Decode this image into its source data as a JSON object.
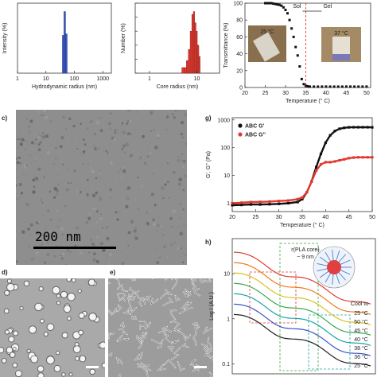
{
  "panel_labels": {
    "c": "c)",
    "d": "d)",
    "e": "e)",
    "g": "g)",
    "h": "h)"
  },
  "tem_c": {
    "scalebar": "200 nm"
  },
  "chart_data": [
    {
      "id": "dls-hydrodynamic",
      "type": "bar",
      "title": "",
      "xlabel": "Hydrodynamic radius (nm)",
      "ylabel": "Intensity (%)",
      "xscale": "log",
      "xlim": [
        1,
        2000
      ],
      "ylim": [
        0,
        50
      ],
      "xticks": [
        1,
        10,
        100,
        1000
      ],
      "xtick_labels": [
        "1",
        "10",
        "100",
        "1000"
      ],
      "color": "#3a5bc7",
      "bars": [
        {
          "x": 38,
          "width": 5,
          "y": 27
        },
        {
          "x": 43,
          "width": 5,
          "y": 44
        },
        {
          "x": 49,
          "width": 6,
          "y": 28
        }
      ]
    },
    {
      "id": "core-radius",
      "type": "bar",
      "title": "",
      "xlabel": "Core radius (nm)",
      "ylabel": "Number (%)",
      "xscale": "log",
      "xlim": [
        0.5,
        30
      ],
      "ylim": [
        0,
        50
      ],
      "xticks": [
        1,
        10
      ],
      "xtick_labels": [
        "1",
        "10"
      ],
      "yticks": [
        0,
        10,
        20,
        30,
        40,
        50
      ],
      "color": "#e03b32",
      "bars": [
        {
          "x": 4.8,
          "width": 0.6,
          "y": 4
        },
        {
          "x": 5.4,
          "width": 0.6,
          "y": 4
        },
        {
          "x": 6.0,
          "width": 0.6,
          "y": 9
        },
        {
          "x": 6.6,
          "width": 0.6,
          "y": 17
        },
        {
          "x": 7.2,
          "width": 0.6,
          "y": 30
        },
        {
          "x": 7.8,
          "width": 0.6,
          "y": 42
        },
        {
          "x": 8.4,
          "width": 0.6,
          "y": 44
        },
        {
          "x": 9.0,
          "width": 0.6,
          "y": 36
        },
        {
          "x": 9.6,
          "width": 0.6,
          "y": 30
        },
        {
          "x": 10.3,
          "width": 0.7,
          "y": 20
        },
        {
          "x": 11.0,
          "width": 0.7,
          "y": 12
        }
      ]
    },
    {
      "id": "transmittance",
      "type": "scatter",
      "title": "",
      "xlabel": "Temperature (° C)",
      "ylabel": "Transmittance (%)",
      "xlim": [
        20,
        51
      ],
      "ylim": [
        0,
        100
      ],
      "xticks": [
        20,
        25,
        30,
        35,
        40,
        45,
        50
      ],
      "yticks": [
        0,
        20,
        40,
        60,
        80,
        100
      ],
      "annotations": {
        "sol": "Sol",
        "gel": "Gel",
        "vial1": "25 °C",
        "vial2": "37 °C"
      },
      "transition_line_x": 35,
      "points": [
        [
          25,
          100
        ],
        [
          25.5,
          100
        ],
        [
          26,
          100
        ],
        [
          26.5,
          100
        ],
        [
          27,
          99.5
        ],
        [
          27.5,
          99
        ],
        [
          28,
          98.5
        ],
        [
          28.5,
          98
        ],
        [
          29,
          97
        ],
        [
          29.5,
          95
        ],
        [
          30,
          92
        ],
        [
          30.5,
          88
        ],
        [
          31,
          80
        ],
        [
          31.5,
          70
        ],
        [
          32,
          60
        ],
        [
          32.5,
          48
        ],
        [
          33,
          38
        ],
        [
          33.5,
          25
        ],
        [
          34,
          10
        ],
        [
          34.5,
          4
        ],
        [
          35,
          2
        ],
        [
          35.5,
          1.5
        ],
        [
          36,
          1
        ],
        [
          37,
          1
        ],
        [
          38,
          1
        ],
        [
          39,
          1
        ],
        [
          40,
          1
        ],
        [
          41,
          1
        ],
        [
          42,
          1
        ],
        [
          43,
          1
        ],
        [
          44,
          1
        ],
        [
          45,
          1
        ],
        [
          46,
          1
        ],
        [
          47,
          1
        ],
        [
          48,
          1
        ],
        [
          49,
          1
        ],
        [
          50,
          1
        ]
      ]
    },
    {
      "id": "rheology",
      "type": "line",
      "title": "",
      "xlabel": "Temperature (° C)",
      "ylabel": "G', G'' (Pa)",
      "yscale": "log",
      "xlim": [
        20,
        50
      ],
      "ylim": [
        0.5,
        1200
      ],
      "xticks": [
        20,
        25,
        30,
        35,
        40,
        45,
        50
      ],
      "yticks": [
        1,
        10,
        100,
        1000
      ],
      "ytick_labels": [
        "1",
        "10",
        "100",
        "1000"
      ],
      "legend": "top-left",
      "series": [
        {
          "name": "ABC G'",
          "color": "#111111",
          "points": [
            [
              20,
              0.85
            ],
            [
              22,
              0.87
            ],
            [
              24,
              0.9
            ],
            [
              26,
              0.9
            ],
            [
              28,
              0.92
            ],
            [
              30,
              0.95
            ],
            [
              32,
              1.0
            ],
            [
              34,
              1.1
            ],
            [
              35,
              1.4
            ],
            [
              36,
              2.5
            ],
            [
              37,
              6
            ],
            [
              38,
              20
            ],
            [
              39,
              60
            ],
            [
              40,
              150
            ],
            [
              41,
              280
            ],
            [
              42,
              400
            ],
            [
              43,
              480
            ],
            [
              44,
              520
            ],
            [
              45,
              540
            ],
            [
              46,
              545
            ],
            [
              47,
              545
            ],
            [
              48,
              545
            ],
            [
              49,
              545
            ],
            [
              50,
              540
            ]
          ]
        },
        {
          "name": "ABC G''",
          "color": "#e03b32",
          "points": [
            [
              20,
              1.0
            ],
            [
              22,
              1.05
            ],
            [
              24,
              1.1
            ],
            [
              26,
              1.12
            ],
            [
              28,
              1.15
            ],
            [
              30,
              1.2
            ],
            [
              32,
              1.25
            ],
            [
              34,
              1.4
            ],
            [
              35,
              1.6
            ],
            [
              36,
              2.5
            ],
            [
              37,
              6
            ],
            [
              38,
              15
            ],
            [
              39,
              25
            ],
            [
              40,
              30
            ],
            [
              41,
              30
            ],
            [
              42,
              32
            ],
            [
              43,
              35
            ],
            [
              44,
              38
            ],
            [
              45,
              42
            ],
            [
              46,
              44
            ],
            [
              47,
              45
            ],
            [
              48,
              45
            ],
            [
              49,
              45
            ],
            [
              50,
              45
            ]
          ]
        }
      ]
    },
    {
      "id": "saxs",
      "type": "line",
      "title": "",
      "xlabel": "",
      "ylabel": "Log I (A.U.)",
      "yscale": "log",
      "ylim": [
        0.06,
        60
      ],
      "yticks": [
        0.1,
        1,
        10
      ],
      "ytick_labels": [
        "0.1",
        "1",
        "10"
      ],
      "legend_title": "Cool to",
      "inset": {
        "label": "r(PLA core)",
        "value": "~ 9 nm"
      },
      "series": [
        {
          "name": "25 °C",
          "color": "#e03b32"
        },
        {
          "name": "50 °C",
          "color": "#f07a1a"
        },
        {
          "name": "45 °C",
          "color": "#d8c21a"
        },
        {
          "name": "40 °C",
          "color": "#3aa84a"
        },
        {
          "name": "38 °C",
          "color": "#17a5a5"
        },
        {
          "name": "36 °C",
          "color": "#3a55c7"
        },
        {
          "name": "25 °C",
          "color": "#222222"
        }
      ]
    }
  ]
}
